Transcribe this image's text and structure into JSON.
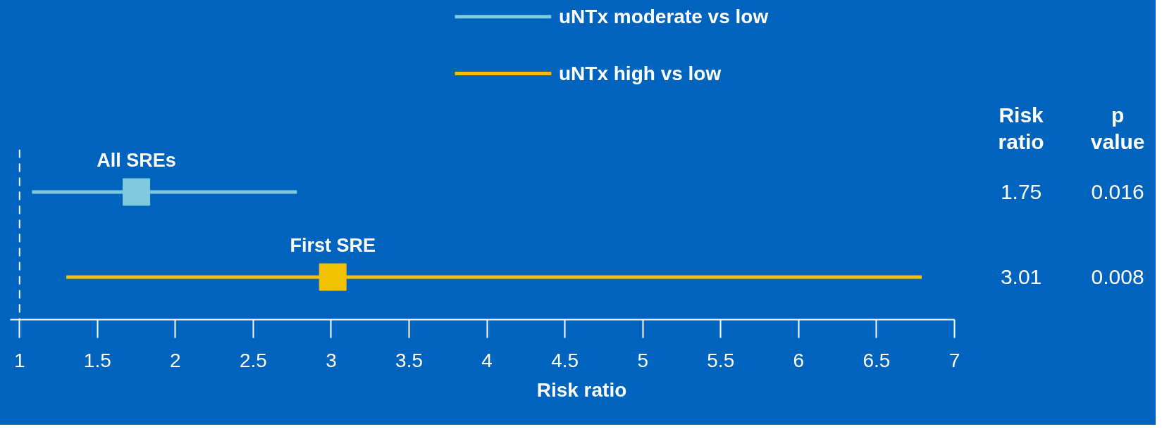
{
  "chart_data": {
    "type": "scatter",
    "orientation": "horizontal",
    "categories": [
      "All SREs",
      "First SRE"
    ],
    "series": [
      {
        "name": "uNTx moderate vs low",
        "color": "#7fcbdd",
        "values": [
          1.75,
          null
        ],
        "errors": [
          [
            1.08,
            2.78
          ],
          null
        ]
      },
      {
        "name": "uNTx high vs low",
        "color": "#f2c200",
        "values": [
          null,
          3.01
        ],
        "errors": [
          null,
          [
            1.3,
            6.79
          ]
        ]
      }
    ],
    "xlabel": "Risk ratio",
    "xlim": [
      0.94,
      7
    ],
    "xticks": [
      1,
      1.5,
      2,
      2.5,
      3,
      3.5,
      4,
      4.5,
      5,
      5.5,
      6,
      6.5,
      7
    ],
    "ref_lines": [
      {
        "axis": "x",
        "value": 1,
        "color": "#ffffff",
        "line_style": "dashed"
      }
    ],
    "annotations": [
      "Risk\nratio",
      "p\nvalue",
      "1.75",
      "0.016",
      "3.01",
      "0.008"
    ],
    "marker": "square",
    "legend": "top",
    "grid": false,
    "tick_labels": "x"
  }
}
